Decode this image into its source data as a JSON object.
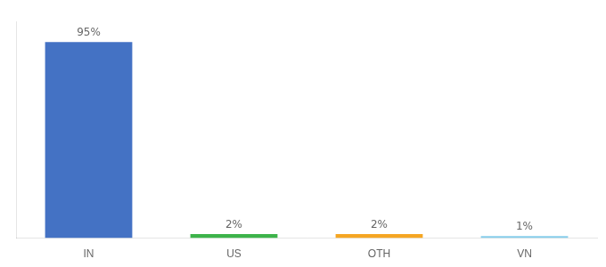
{
  "chart_data": {
    "type": "bar",
    "categories": [
      "IN",
      "US",
      "OTH",
      "VN"
    ],
    "values": [
      95,
      2,
      2,
      1
    ],
    "value_labels": [
      "95%",
      "2%",
      "2%",
      "1%"
    ],
    "colors": [
      "#4472c4",
      "#3db34a",
      "#f5a623",
      "#87ceeb"
    ],
    "ylim": [
      0,
      105
    ],
    "data_labels": true,
    "tick_labels": "x",
    "grid": false
  }
}
